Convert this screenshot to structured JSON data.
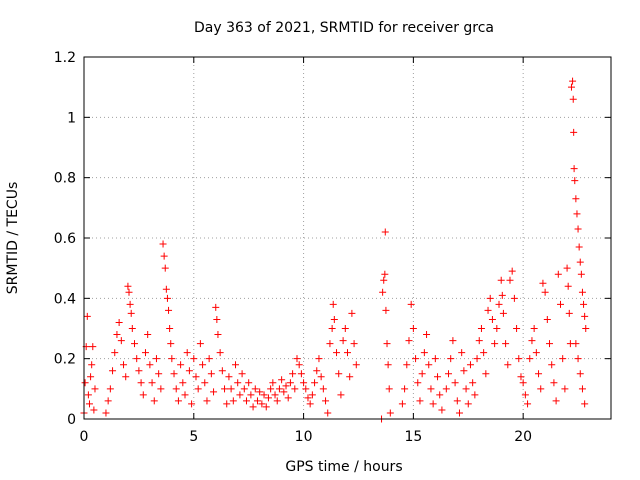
{
  "chart_data": {
    "type": "scatter",
    "title": "Day 363 of 2021, SRMTID for receiver grca",
    "xlabel": "GPS time / hours",
    "ylabel": "SRMTID / TECUs",
    "xlim": [
      0,
      24
    ],
    "ylim": [
      0,
      1.2
    ],
    "xticks": [
      0,
      5,
      10,
      15,
      20
    ],
    "xtick_labels": [
      "0",
      "5",
      "10",
      "15",
      "20"
    ],
    "yticks": [
      0,
      0.2,
      0.4,
      0.6,
      0.8,
      1,
      1.2
    ],
    "ytick_labels": [
      "0",
      "0.2",
      "0.4",
      "0.6",
      "0.8",
      "1",
      "1.2"
    ],
    "grid": true,
    "marker": "+",
    "series": [
      {
        "name": "SRMTID",
        "color": "#ff0000",
        "points": [
          [
            0.0,
            0.02
          ],
          [
            0.05,
            0.12
          ],
          [
            0.1,
            0.24
          ],
          [
            0.15,
            0.34
          ],
          [
            0.2,
            0.08
          ],
          [
            0.25,
            0.05
          ],
          [
            0.3,
            0.14
          ],
          [
            0.35,
            0.18
          ],
          [
            0.4,
            0.24
          ],
          [
            0.45,
            0.03
          ],
          [
            0.5,
            0.1
          ],
          [
            1.0,
            0.02
          ],
          [
            1.1,
            0.06
          ],
          [
            1.2,
            0.1
          ],
          [
            1.3,
            0.16
          ],
          [
            1.4,
            0.22
          ],
          [
            1.5,
            0.28
          ],
          [
            1.6,
            0.32
          ],
          [
            1.7,
            0.26
          ],
          [
            1.8,
            0.18
          ],
          [
            1.9,
            0.14
          ],
          [
            2.0,
            0.44
          ],
          [
            2.05,
            0.42
          ],
          [
            2.1,
            0.38
          ],
          [
            2.15,
            0.35
          ],
          [
            2.2,
            0.3
          ],
          [
            2.3,
            0.25
          ],
          [
            2.4,
            0.2
          ],
          [
            2.5,
            0.16
          ],
          [
            2.6,
            0.12
          ],
          [
            2.7,
            0.08
          ],
          [
            2.8,
            0.22
          ],
          [
            2.9,
            0.28
          ],
          [
            3.0,
            0.18
          ],
          [
            3.1,
            0.12
          ],
          [
            3.2,
            0.06
          ],
          [
            3.3,
            0.2
          ],
          [
            3.4,
            0.15
          ],
          [
            3.5,
            0.1
          ],
          [
            3.6,
            0.58
          ],
          [
            3.65,
            0.54
          ],
          [
            3.7,
            0.5
          ],
          [
            3.75,
            0.43
          ],
          [
            3.8,
            0.4
          ],
          [
            3.85,
            0.36
          ],
          [
            3.9,
            0.3
          ],
          [
            3.95,
            0.25
          ],
          [
            4.0,
            0.2
          ],
          [
            4.1,
            0.15
          ],
          [
            4.2,
            0.1
          ],
          [
            4.3,
            0.06
          ],
          [
            4.4,
            0.18
          ],
          [
            4.5,
            0.12
          ],
          [
            4.6,
            0.08
          ],
          [
            4.7,
            0.22
          ],
          [
            4.8,
            0.16
          ],
          [
            4.9,
            0.05
          ],
          [
            5.0,
            0.2
          ],
          [
            5.1,
            0.14
          ],
          [
            5.2,
            0.1
          ],
          [
            5.3,
            0.25
          ],
          [
            5.4,
            0.18
          ],
          [
            5.5,
            0.12
          ],
          [
            5.6,
            0.06
          ],
          [
            5.7,
            0.2
          ],
          [
            5.8,
            0.15
          ],
          [
            5.9,
            0.09
          ],
          [
            6.0,
            0.37
          ],
          [
            6.05,
            0.33
          ],
          [
            6.1,
            0.28
          ],
          [
            6.2,
            0.22
          ],
          [
            6.3,
            0.16
          ],
          [
            6.4,
            0.1
          ],
          [
            6.5,
            0.05
          ],
          [
            6.6,
            0.14
          ],
          [
            6.7,
            0.1
          ],
          [
            6.8,
            0.06
          ],
          [
            6.9,
            0.18
          ],
          [
            7.0,
            0.12
          ],
          [
            7.1,
            0.08
          ],
          [
            7.2,
            0.15
          ],
          [
            7.3,
            0.1
          ],
          [
            7.4,
            0.06
          ],
          [
            7.5,
            0.12
          ],
          [
            7.6,
            0.08
          ],
          [
            7.7,
            0.04
          ],
          [
            7.8,
            0.1
          ],
          [
            7.9,
            0.06
          ],
          [
            8.0,
            0.09
          ],
          [
            8.1,
            0.05
          ],
          [
            8.2,
            0.08
          ],
          [
            8.3,
            0.04
          ],
          [
            8.4,
            0.07
          ],
          [
            8.5,
            0.1
          ],
          [
            8.6,
            0.12
          ],
          [
            8.7,
            0.08
          ],
          [
            8.8,
            0.06
          ],
          [
            8.9,
            0.1
          ],
          [
            9.0,
            0.13
          ],
          [
            9.1,
            0.09
          ],
          [
            9.2,
            0.11
          ],
          [
            9.3,
            0.07
          ],
          [
            9.4,
            0.12
          ],
          [
            9.5,
            0.15
          ],
          [
            9.6,
            0.1
          ],
          [
            9.7,
            0.2
          ],
          [
            9.8,
            0.18
          ],
          [
            9.9,
            0.15
          ],
          [
            10.0,
            0.12
          ],
          [
            10.1,
            0.1
          ],
          [
            10.2,
            0.07
          ],
          [
            10.3,
            0.05
          ],
          [
            10.4,
            0.08
          ],
          [
            10.5,
            0.12
          ],
          [
            10.6,
            0.16
          ],
          [
            10.7,
            0.2
          ],
          [
            10.8,
            0.14
          ],
          [
            10.9,
            0.1
          ],
          [
            11.0,
            0.06
          ],
          [
            11.1,
            0.02
          ],
          [
            11.2,
            0.25
          ],
          [
            11.3,
            0.3
          ],
          [
            11.35,
            0.38
          ],
          [
            11.4,
            0.33
          ],
          [
            11.5,
            0.22
          ],
          [
            11.6,
            0.15
          ],
          [
            11.7,
            0.08
          ],
          [
            11.8,
            0.26
          ],
          [
            11.9,
            0.3
          ],
          [
            12.0,
            0.22
          ],
          [
            12.1,
            0.14
          ],
          [
            12.2,
            0.35
          ],
          [
            12.3,
            0.25
          ],
          [
            12.4,
            0.18
          ],
          [
            13.55,
            0.0
          ],
          [
            13.6,
            0.42
          ],
          [
            13.65,
            0.46
          ],
          [
            13.7,
            0.48
          ],
          [
            13.72,
            0.62
          ],
          [
            13.75,
            0.36
          ],
          [
            13.8,
            0.25
          ],
          [
            13.85,
            0.18
          ],
          [
            13.9,
            0.1
          ],
          [
            13.95,
            0.02
          ],
          [
            14.5,
            0.05
          ],
          [
            14.6,
            0.1
          ],
          [
            14.7,
            0.18
          ],
          [
            14.8,
            0.26
          ],
          [
            14.9,
            0.38
          ],
          [
            15.0,
            0.3
          ],
          [
            15.1,
            0.2
          ],
          [
            15.2,
            0.12
          ],
          [
            15.3,
            0.06
          ],
          [
            15.4,
            0.15
          ],
          [
            15.5,
            0.22
          ],
          [
            15.6,
            0.28
          ],
          [
            15.7,
            0.18
          ],
          [
            15.8,
            0.1
          ],
          [
            15.9,
            0.05
          ],
          [
            16.0,
            0.2
          ],
          [
            16.1,
            0.14
          ],
          [
            16.2,
            0.08
          ],
          [
            16.3,
            0.03
          ],
          [
            16.5,
            0.1
          ],
          [
            16.6,
            0.15
          ],
          [
            16.7,
            0.2
          ],
          [
            16.8,
            0.26
          ],
          [
            16.9,
            0.12
          ],
          [
            17.0,
            0.06
          ],
          [
            17.1,
            0.02
          ],
          [
            17.2,
            0.22
          ],
          [
            17.3,
            0.16
          ],
          [
            17.4,
            0.1
          ],
          [
            17.5,
            0.05
          ],
          [
            17.6,
            0.18
          ],
          [
            17.7,
            0.12
          ],
          [
            17.8,
            0.08
          ],
          [
            17.9,
            0.2
          ],
          [
            18.0,
            0.26
          ],
          [
            18.1,
            0.3
          ],
          [
            18.2,
            0.22
          ],
          [
            18.3,
            0.15
          ],
          [
            18.4,
            0.36
          ],
          [
            18.5,
            0.4
          ],
          [
            18.6,
            0.33
          ],
          [
            18.7,
            0.25
          ],
          [
            18.8,
            0.3
          ],
          [
            18.9,
            0.38
          ],
          [
            19.0,
            0.46
          ],
          [
            19.05,
            0.41
          ],
          [
            19.1,
            0.35
          ],
          [
            19.2,
            0.25
          ],
          [
            19.3,
            0.18
          ],
          [
            19.4,
            0.46
          ],
          [
            19.5,
            0.49
          ],
          [
            19.6,
            0.4
          ],
          [
            19.7,
            0.3
          ],
          [
            19.8,
            0.2
          ],
          [
            19.9,
            0.14
          ],
          [
            20.0,
            0.12
          ],
          [
            20.1,
            0.08
          ],
          [
            20.2,
            0.05
          ],
          [
            20.3,
            0.2
          ],
          [
            20.4,
            0.26
          ],
          [
            20.5,
            0.3
          ],
          [
            20.6,
            0.22
          ],
          [
            20.7,
            0.15
          ],
          [
            20.8,
            0.1
          ],
          [
            20.9,
            0.45
          ],
          [
            21.0,
            0.42
          ],
          [
            21.1,
            0.33
          ],
          [
            21.2,
            0.25
          ],
          [
            21.3,
            0.18
          ],
          [
            21.4,
            0.12
          ],
          [
            21.5,
            0.06
          ],
          [
            21.6,
            0.48
          ],
          [
            21.7,
            0.38
          ],
          [
            21.8,
            0.2
          ],
          [
            21.9,
            0.1
          ],
          [
            22.0,
            0.5
          ],
          [
            22.05,
            0.44
          ],
          [
            22.1,
            0.35
          ],
          [
            22.15,
            0.25
          ],
          [
            22.2,
            1.1
          ],
          [
            22.25,
            1.12
          ],
          [
            22.28,
            1.06
          ],
          [
            22.3,
            0.95
          ],
          [
            22.32,
            0.83
          ],
          [
            22.35,
            0.79
          ],
          [
            22.4,
            0.73
          ],
          [
            22.45,
            0.68
          ],
          [
            22.5,
            0.63
          ],
          [
            22.55,
            0.57
          ],
          [
            22.6,
            0.52
          ],
          [
            22.65,
            0.48
          ],
          [
            22.7,
            0.42
          ],
          [
            22.75,
            0.38
          ],
          [
            22.8,
            0.34
          ],
          [
            22.85,
            0.3
          ],
          [
            22.4,
            0.25
          ],
          [
            22.5,
            0.2
          ],
          [
            22.6,
            0.15
          ],
          [
            22.7,
            0.1
          ],
          [
            22.8,
            0.05
          ]
        ]
      }
    ]
  }
}
